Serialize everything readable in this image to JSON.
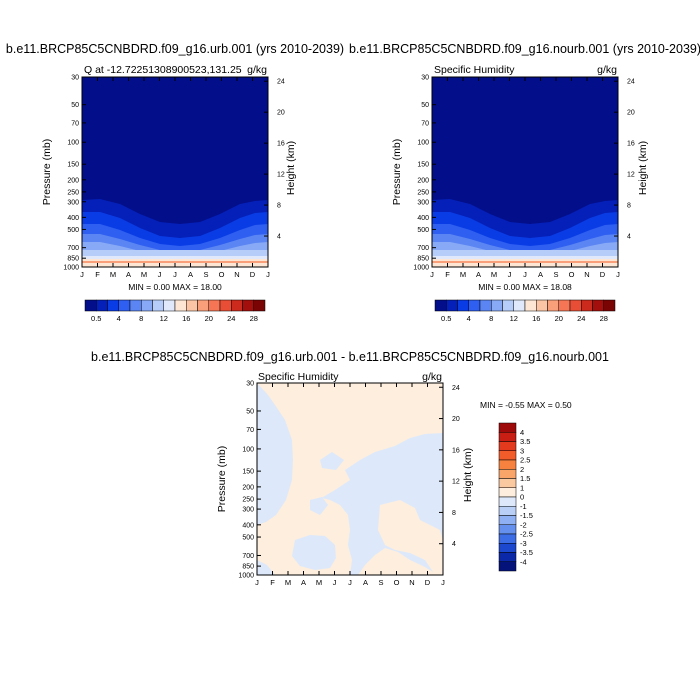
{
  "colors": {
    "background": "#ffffff",
    "frame": "#000000"
  },
  "chart_data": [
    {
      "type": "heatmap",
      "title": "b.e11.BRCP85C5CNBDRD.f09_g16.urb.001 (yrs 2010-2039)",
      "subtitle_left": "Q at -12.72251308900523,131.25",
      "units": "g/kg",
      "ylabel": "Pressure (mb)",
      "ylabel_right": "Height (km)",
      "x_ticks": [
        "J",
        "F",
        "M",
        "A",
        "M",
        "J",
        "J",
        "A",
        "S",
        "O",
        "N",
        "D",
        "J"
      ],
      "y_ticks": [
        "30",
        "50",
        "70",
        "100",
        "150",
        "200",
        "250",
        "300",
        "400",
        "500",
        "700",
        "850",
        "1000"
      ],
      "y_right_ticks": [
        "24",
        "20",
        "16",
        "12",
        "8",
        "4"
      ],
      "stats": "MIN =   0.00 MAX =  18.00",
      "colorbar_labels": [
        "0.5",
        "4",
        "8",
        "12",
        "16",
        "20",
        "24",
        "28"
      ],
      "colorbar_colors": [
        "#030e8a",
        "#0420b8",
        "#0a3ce6",
        "#2e5ff0",
        "#5b85f3",
        "#88a9f6",
        "#b6cdf9",
        "#dfe9fb",
        "#fde6d4",
        "#fbc5a5",
        "#f9a07a",
        "#f57554",
        "#e84d35",
        "#cc2a1c",
        "#a30f0c",
        "#7a0404"
      ]
    },
    {
      "type": "heatmap",
      "title": "b.e11.BRCP85C5CNBDRD.f09_g16.nourb.001 (yrs 2010-2039)",
      "subtitle_left": "Specific Humidity",
      "units": "g/kg",
      "ylabel": "Pressure (mb)",
      "ylabel_right": "Height (km)",
      "x_ticks": [
        "J",
        "F",
        "M",
        "A",
        "M",
        "J",
        "J",
        "A",
        "S",
        "O",
        "N",
        "D",
        "J"
      ],
      "y_ticks": [
        "30",
        "50",
        "70",
        "100",
        "150",
        "200",
        "250",
        "300",
        "400",
        "500",
        "700",
        "850",
        "1000"
      ],
      "y_right_ticks": [
        "24",
        "20",
        "16",
        "12",
        "8",
        "4"
      ],
      "stats": "MIN =   0.00 MAX =  18.08",
      "colorbar_labels": [
        "0.5",
        "4",
        "8",
        "12",
        "16",
        "20",
        "24",
        "28"
      ]
    },
    {
      "type": "heatmap",
      "title": "b.e11.BRCP85C5CNBDRD.f09_g16.urb.001 - b.e11.BRCP85C5CNBDRD.f09_g16.nourb.001",
      "subtitle_left": "Specific Humidity",
      "units": "g/kg",
      "ylabel": "Pressure (mb)",
      "ylabel_right": "Height (km)",
      "x_ticks": [
        "J",
        "F",
        "M",
        "A",
        "M",
        "J",
        "J",
        "A",
        "S",
        "O",
        "N",
        "D",
        "J"
      ],
      "y_ticks": [
        "30",
        "50",
        "70",
        "100",
        "150",
        "200",
        "250",
        "300",
        "400",
        "500",
        "700",
        "850",
        "1000"
      ],
      "y_right_ticks": [
        "24",
        "20",
        "16",
        "12",
        "8",
        "4"
      ],
      "stats": "MIN =  -0.55 MAX =   0.50",
      "colorbar_labels": [
        "4",
        "3.5",
        "3",
        "2.5",
        "2",
        "1.5",
        "1",
        "0",
        "-1",
        "-1.5",
        "-2",
        "-2.5",
        "-3",
        "-3.5",
        "-4"
      ],
      "colorbar_colors": [
        "#9e0a0a",
        "#c81e14",
        "#e33a1e",
        "#f25c2b",
        "#f7823f",
        "#f9a56a",
        "#fbc9a0",
        "#fdeede",
        "#dde9fa",
        "#b9cff6",
        "#8fb0f2",
        "#6690ee",
        "#3d6de6",
        "#1c48d0",
        "#0a28a8",
        "#04137a"
      ]
    }
  ]
}
